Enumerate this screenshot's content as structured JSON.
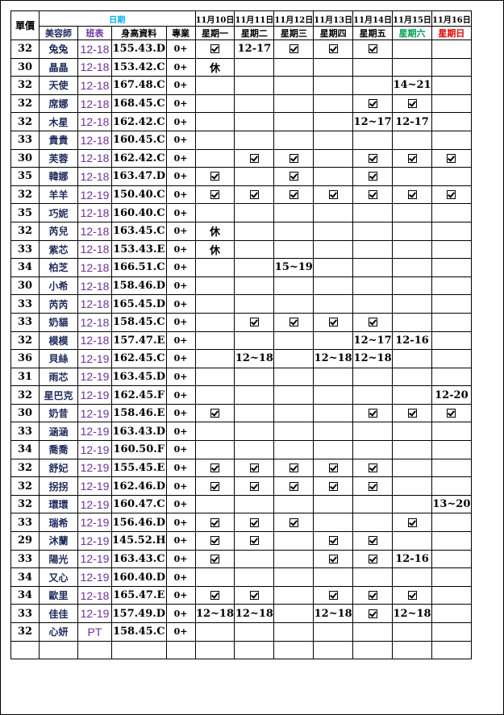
{
  "header": {
    "price": "單價",
    "date_group": "日期",
    "stylist": "美容師",
    "shift": "班表",
    "body": "身高資料",
    "skill": "專業",
    "dates": [
      "11月10日",
      "11月11日",
      "11月12日",
      "11月13日",
      "11月14日",
      "11月15日",
      "11月16日"
    ],
    "weekdays": [
      "星期一",
      "星期二",
      "星期三",
      "星期四",
      "星期五",
      "星期六",
      "星期日"
    ]
  },
  "colors": {
    "date_header": "#00b0f0",
    "shift": "#7030a0",
    "saturday": "#00a050",
    "sunday": "#e00000",
    "name": "#1f2a5c"
  },
  "check_icon": "checkbox-checked-icon",
  "rows": [
    {
      "price": "32",
      "name": "兔兔",
      "shift": "12-18",
      "body": "155.43.D",
      "skill": "0+",
      "days": [
        "✓",
        "12-17",
        "✓",
        "✓",
        "✓",
        "",
        ""
      ]
    },
    {
      "price": "30",
      "name": "晶晶",
      "shift": "12-18",
      "body": "153.42.C",
      "skill": "0+",
      "days": [
        "休",
        "",
        "",
        "",
        "",
        "",
        ""
      ]
    },
    {
      "price": "32",
      "name": "天使",
      "shift": "12-18",
      "body": "167.48.C",
      "skill": "0+",
      "days": [
        "",
        "",
        "",
        "",
        "",
        "14~21",
        ""
      ]
    },
    {
      "price": "32",
      "name": "席娜",
      "shift": "12-18",
      "body": "168.45.C",
      "skill": "0+",
      "days": [
        "",
        "",
        "",
        "",
        "✓",
        "✓",
        ""
      ]
    },
    {
      "price": "32",
      "name": "木星",
      "shift": "12-18",
      "body": "162.42.C",
      "skill": "0+",
      "days": [
        "",
        "",
        "",
        "",
        "12~17",
        "12-17",
        ""
      ]
    },
    {
      "price": "33",
      "name": "貴貴",
      "shift": "12-18",
      "body": "160.45.C",
      "skill": "0+",
      "days": [
        "",
        "",
        "",
        "",
        "",
        "",
        ""
      ]
    },
    {
      "price": "30",
      "name": "芙蓉",
      "shift": "12-18",
      "body": "162.42.C",
      "skill": "0+",
      "days": [
        "",
        "✓",
        "✓",
        "",
        "✓",
        "✓",
        "✓"
      ]
    },
    {
      "price": "35",
      "name": "韓娜",
      "shift": "12-18",
      "body": "163.47.D",
      "skill": "0+",
      "days": [
        "✓",
        "",
        "✓",
        "",
        "✓",
        "",
        ""
      ]
    },
    {
      "price": "32",
      "name": "羊羊",
      "shift": "12-19",
      "body": "150.40.C",
      "skill": "0+",
      "days": [
        "✓",
        "✓",
        "✓",
        "✓",
        "✓",
        "✓",
        "✓"
      ]
    },
    {
      "price": "35",
      "name": "巧妮",
      "shift": "12-18",
      "body": "160.40.C",
      "skill": "0+",
      "days": [
        "",
        "",
        "",
        "",
        "",
        "",
        ""
      ]
    },
    {
      "price": "32",
      "name": "芮兒",
      "shift": "12-18",
      "body": "163.45.C",
      "skill": "0+",
      "days": [
        "休",
        "",
        "",
        "",
        "",
        "",
        ""
      ]
    },
    {
      "price": "33",
      "name": "紫芯",
      "shift": "12-18",
      "body": "153.43.E",
      "skill": "0+",
      "days": [
        "休",
        "",
        "",
        "",
        "",
        "",
        ""
      ]
    },
    {
      "price": "34",
      "name": "柏芝",
      "shift": "12-18",
      "body": "166.51.C",
      "skill": "0+",
      "days": [
        "",
        "",
        "15~19",
        "",
        "",
        "",
        ""
      ]
    },
    {
      "price": "30",
      "name": "小希",
      "shift": "12-18",
      "body": "158.46.D",
      "skill": "0+",
      "days": [
        "",
        "",
        "",
        "",
        "",
        "",
        ""
      ]
    },
    {
      "price": "33",
      "name": "芮芮",
      "shift": "12-18",
      "body": "165.45.D",
      "skill": "0+",
      "days": [
        "",
        "",
        "",
        "",
        "",
        "",
        ""
      ]
    },
    {
      "price": "33",
      "name": "奶貓",
      "shift": "12-18",
      "body": "158.45.C",
      "skill": "0+",
      "days": [
        "",
        "✓",
        "✓",
        "✓",
        "✓",
        "",
        ""
      ]
    },
    {
      "price": "32",
      "name": "模模",
      "shift": "12-18",
      "body": "157.47.E",
      "skill": "0+",
      "days": [
        "",
        "",
        "",
        "",
        "12~17",
        "12-16",
        ""
      ]
    },
    {
      "price": "36",
      "name": "貝絲",
      "shift": "12-19",
      "body": "162.45.C",
      "skill": "0+",
      "days": [
        "",
        "12~18",
        "",
        "12~18",
        "12~18",
        "",
        ""
      ]
    },
    {
      "price": "31",
      "name": "雨芯",
      "shift": "12-19",
      "body": "163.45.D",
      "skill": "0+",
      "days": [
        "",
        "",
        "",
        "",
        "",
        "",
        ""
      ]
    },
    {
      "price": "32",
      "name": "星巴克",
      "shift": "12-19",
      "body": "162.45.F",
      "skill": "0+",
      "days": [
        "",
        "",
        "",
        "",
        "",
        "",
        "12-20"
      ]
    },
    {
      "price": "30",
      "name": "奶昔",
      "shift": "12-19",
      "body": "158.46.E",
      "skill": "0+",
      "days": [
        "✓",
        "",
        "",
        "",
        "✓",
        "✓",
        "✓"
      ]
    },
    {
      "price": "33",
      "name": "涵涵",
      "shift": "12-19",
      "body": "163.43.D",
      "skill": "0+",
      "days": [
        "",
        "",
        "",
        "",
        "",
        "",
        ""
      ]
    },
    {
      "price": "34",
      "name": "喬喬",
      "shift": "12-19",
      "body": "160.50.F",
      "skill": "0+",
      "days": [
        "",
        "",
        "",
        "",
        "",
        "",
        ""
      ]
    },
    {
      "price": "32",
      "name": "舒妃",
      "shift": "12-19",
      "body": "155.45.E",
      "skill": "0+",
      "days": [
        "✓",
        "✓",
        "✓",
        "✓",
        "✓",
        "",
        ""
      ]
    },
    {
      "price": "32",
      "name": "拐拐",
      "shift": "12-19",
      "body": "162.46.D",
      "skill": "0+",
      "days": [
        "✓",
        "✓",
        "✓",
        "✓",
        "✓",
        "",
        ""
      ]
    },
    {
      "price": "32",
      "name": "環環",
      "shift": "12-19",
      "body": "160.47.C",
      "skill": "0+",
      "days": [
        "",
        "",
        "",
        "",
        "",
        "",
        "13~20"
      ]
    },
    {
      "price": "33",
      "name": "瑞希",
      "shift": "12-19",
      "body": "156.46.D",
      "skill": "0+",
      "days": [
        "✓",
        "✓",
        "✓",
        "",
        "",
        "✓",
        ""
      ]
    },
    {
      "price": "29",
      "name": "沐蘭",
      "shift": "12-19",
      "body": "145.52.H",
      "skill": "0+",
      "days": [
        "✓",
        "✓",
        "",
        "✓",
        "✓",
        "",
        ""
      ]
    },
    {
      "price": "33",
      "name": "陽光",
      "shift": "12-19",
      "body": "163.43.C",
      "skill": "0+",
      "days": [
        "✓",
        "",
        "",
        "✓",
        "✓",
        "12-16",
        ""
      ]
    },
    {
      "price": "34",
      "name": "又心",
      "shift": "12-19",
      "body": "160.40.D",
      "skill": "0+",
      "days": [
        "",
        "",
        "",
        "",
        "",
        "",
        ""
      ]
    },
    {
      "price": "34",
      "name": "歐里",
      "shift": "12-18",
      "body": "165.47.E",
      "skill": "0+",
      "days": [
        "✓",
        "✓",
        "",
        "✓",
        "✓",
        "✓",
        ""
      ]
    },
    {
      "price": "33",
      "name": "佳佳",
      "shift": "12-19",
      "body": "157.49.D",
      "skill": "0+",
      "days": [
        "12~18",
        "12~18",
        "",
        "12~18",
        "✓",
        "12~18",
        ""
      ]
    },
    {
      "price": "32",
      "name": "心妍",
      "shift": "PT",
      "body": "158.45.C",
      "skill": "0+",
      "days": [
        "",
        "",
        "",
        "",
        "",
        "",
        ""
      ]
    },
    {
      "price": "",
      "name": "",
      "shift": "",
      "body": "",
      "skill": "",
      "days": [
        "",
        "",
        "",
        "",
        "",
        "",
        ""
      ]
    }
  ]
}
